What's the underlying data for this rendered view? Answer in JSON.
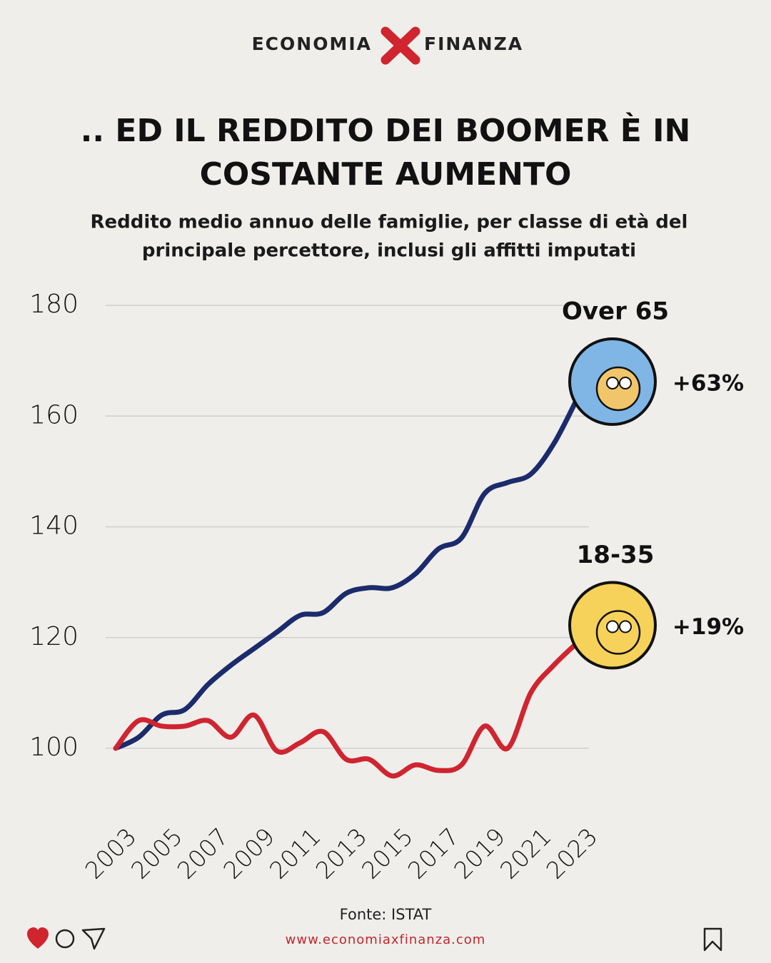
{
  "header": {
    "brand_left": "ECONOMIA",
    "brand_right": "FINANZA"
  },
  "footer": {
    "url": "www.economiaxfinanza.com"
  },
  "chart_data": {
    "type": "line",
    "title": [
      ".. ED IL REDDITO DEI BOOMER È IN",
      "COSTANTE AUMENTO"
    ],
    "subtitle": [
      "Reddito medio annuo delle famiglie, per classe di età del",
      "principale percettore, inclusi gli affitti imputati"
    ],
    "source": "Fonte: ISTAT",
    "x": [
      2003,
      2004,
      2005,
      2006,
      2007,
      2008,
      2009,
      2010,
      2011,
      2012,
      2013,
      2014,
      2015,
      2016,
      2017,
      2018,
      2019,
      2020,
      2021,
      2022,
      2023
    ],
    "xlim": [
      2003,
      2023
    ],
    "xticks": [
      2003,
      2005,
      2007,
      2009,
      2011,
      2013,
      2015,
      2017,
      2019,
      2021,
      2023
    ],
    "ylim": [
      100,
      180
    ],
    "yticks": [
      100,
      120,
      140,
      160,
      180
    ],
    "grid": true,
    "series": [
      {
        "name": "Over 65",
        "color": "#1b2b6b",
        "change_label": "+63%",
        "values": [
          100,
          102,
          106,
          107,
          111.5,
          115,
          118,
          121,
          124,
          124.5,
          128,
          129,
          129,
          131.5,
          136,
          138,
          146,
          148,
          149.5,
          155,
          163
        ]
      },
      {
        "name": "18-35",
        "color": "#cf2530",
        "change_label": "+19%",
        "values": [
          100,
          105,
          104,
          104,
          105,
          102,
          106,
          99.5,
          101,
          103,
          98,
          98,
          95,
          97,
          96,
          97,
          104,
          100,
          110,
          115,
          119
        ]
      }
    ]
  }
}
